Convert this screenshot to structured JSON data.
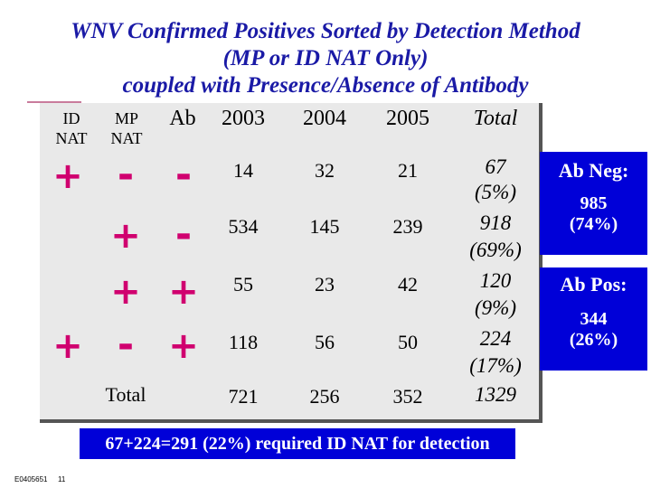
{
  "title": {
    "line1": "WNV Confirmed Positives Sorted by Detection Method",
    "line2": "(MP or ID NAT Only)",
    "line3": "coupled with Presence/Absence of Antibody"
  },
  "table": {
    "headers": {
      "id_nat_line1": "ID",
      "id_nat_line2": "NAT",
      "mp_nat_line1": "MP",
      "mp_nat_line2": "NAT",
      "ab": "Ab",
      "y2003": "2003",
      "y2004": "2004",
      "y2005": "2005",
      "total": "Total"
    },
    "rows": [
      {
        "id_nat": "+",
        "mp_nat": "-",
        "ab": "-",
        "y2003": "14",
        "y2004": "32",
        "y2005": "21",
        "total": "67",
        "pct": "(5%)"
      },
      {
        "id_nat": "",
        "mp_nat": "+",
        "ab": "-",
        "y2003": "534",
        "y2004": "145",
        "y2005": "239",
        "total": "918",
        "pct": "(69%)"
      },
      {
        "id_nat": "",
        "mp_nat": "+",
        "ab": "+",
        "y2003": "55",
        "y2004": "23",
        "y2005": "42",
        "total": "120",
        "pct": "(9%)"
      },
      {
        "id_nat": "+",
        "mp_nat": "-",
        "ab": "+",
        "y2003": "118",
        "y2004": "56",
        "y2005": "50",
        "total": "224",
        "pct": "(17%)"
      }
    ],
    "totals": {
      "label": "Total",
      "y2003": "721",
      "y2004": "256",
      "y2005": "352",
      "total": "1329"
    }
  },
  "side": {
    "neg_label": "Ab Neg:",
    "neg_value": "985",
    "neg_pct": "(74%)",
    "pos_label": "Ab Pos:",
    "pos_value": "344",
    "pos_pct": "(26%)"
  },
  "banner": "67+224=291 (22%) required ID NAT for detection",
  "footer": {
    "code": "E0405651",
    "page": "11"
  },
  "colors": {
    "title": "#1a1aa6",
    "accent_symbols": "#d0006f",
    "side_panel": "#0000d8",
    "panel_bg": "#e9e9e9"
  }
}
